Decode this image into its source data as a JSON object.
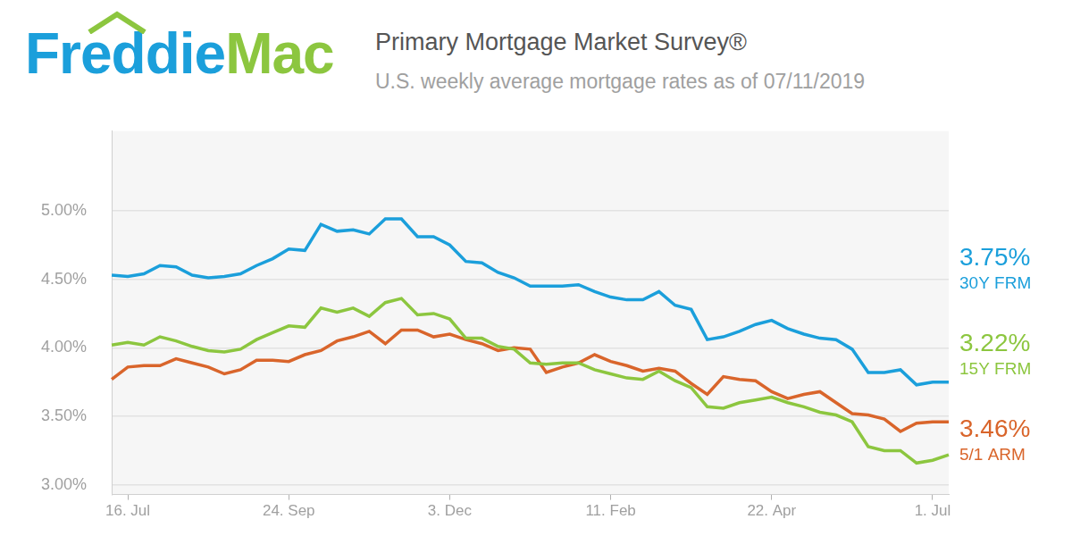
{
  "chart_data": {
    "type": "line",
    "logo": [
      "Freddie",
      "Mac"
    ],
    "title": "Primary Mortgage Market Survey®",
    "subtitle": "U.S. weekly average mortgage rates as of 07/11/2019",
    "categories": [
      null,
      "16. Jul",
      null,
      null,
      null,
      null,
      null,
      null,
      null,
      null,
      null,
      "24. Sep",
      null,
      null,
      null,
      null,
      null,
      null,
      null,
      null,
      null,
      "3. Dec",
      null,
      null,
      null,
      null,
      null,
      null,
      null,
      null,
      null,
      "11. Feb",
      null,
      null,
      null,
      null,
      null,
      null,
      null,
      null,
      null,
      "22. Apr",
      null,
      null,
      null,
      null,
      null,
      null,
      null,
      null,
      null,
      "1. Jul",
      null
    ],
    "series": [
      {
        "name": "30Y FRM",
        "color": "#1b9fdb",
        "values": [
          4.53,
          4.52,
          4.54,
          4.6,
          4.59,
          4.53,
          4.51,
          4.52,
          4.54,
          4.6,
          4.65,
          4.72,
          4.71,
          4.9,
          4.85,
          4.86,
          4.83,
          4.94,
          4.94,
          4.81,
          4.81,
          4.75,
          4.63,
          4.62,
          4.55,
          4.51,
          4.45,
          4.45,
          4.45,
          4.46,
          4.41,
          4.37,
          4.35,
          4.35,
          4.41,
          4.31,
          4.28,
          4.06,
          4.08,
          4.12,
          4.17,
          4.2,
          4.14,
          4.1,
          4.07,
          4.06,
          3.99,
          3.82,
          3.82,
          3.84,
          3.73,
          3.75,
          3.75
        ],
        "value_labels": [
          null,
          null,
          null,
          null,
          null,
          null,
          null,
          null,
          null,
          null,
          null,
          null,
          null,
          null,
          null,
          null,
          null,
          null,
          null,
          null,
          null,
          null,
          null,
          null,
          null,
          null,
          null,
          null,
          null,
          null,
          null,
          null,
          null,
          null,
          null,
          null,
          null,
          null,
          null,
          null,
          null,
          null,
          null,
          null,
          null,
          null,
          null,
          null,
          null,
          null,
          null,
          null,
          "3.75%"
        ]
      },
      {
        "name": "15Y FRM",
        "color": "#8cc63f",
        "values": [
          4.02,
          4.04,
          4.02,
          4.08,
          4.05,
          4.01,
          3.98,
          3.97,
          3.99,
          4.06,
          4.11,
          4.16,
          4.15,
          4.29,
          4.26,
          4.29,
          4.23,
          4.33,
          4.36,
          4.24,
          4.25,
          4.21,
          4.07,
          4.07,
          4.01,
          3.99,
          3.89,
          3.88,
          3.89,
          3.89,
          3.84,
          3.81,
          3.78,
          3.77,
          3.83,
          3.76,
          3.71,
          3.57,
          3.56,
          3.6,
          3.62,
          3.64,
          3.6,
          3.57,
          3.53,
          3.51,
          3.46,
          3.28,
          3.25,
          3.25,
          3.16,
          3.18,
          3.22
        ],
        "value_labels": [
          null,
          null,
          null,
          null,
          null,
          null,
          null,
          null,
          null,
          null,
          null,
          null,
          null,
          null,
          null,
          null,
          null,
          null,
          null,
          null,
          null,
          null,
          null,
          null,
          null,
          null,
          null,
          null,
          null,
          null,
          null,
          null,
          null,
          null,
          null,
          null,
          null,
          null,
          null,
          null,
          null,
          null,
          null,
          null,
          null,
          null,
          null,
          null,
          null,
          null,
          null,
          null,
          "3.22%"
        ]
      },
      {
        "name": "5/1 ARM",
        "color": "#d9652b",
        "values": [
          3.77,
          3.86,
          3.87,
          3.87,
          3.92,
          3.89,
          3.86,
          3.81,
          3.84,
          3.91,
          3.91,
          3.9,
          3.95,
          3.98,
          4.05,
          4.08,
          4.12,
          4.03,
          4.13,
          4.13,
          4.08,
          4.1,
          4.06,
          4.03,
          3.98,
          4.0,
          3.99,
          3.82,
          3.86,
          3.89,
          3.95,
          3.9,
          3.87,
          3.83,
          3.85,
          3.83,
          3.74,
          3.66,
          3.79,
          3.77,
          3.76,
          3.68,
          3.63,
          3.66,
          3.68,
          3.6,
          3.52,
          3.51,
          3.48,
          3.39,
          3.45,
          3.46,
          3.46
        ],
        "value_labels": [
          null,
          null,
          null,
          null,
          null,
          null,
          null,
          null,
          null,
          null,
          null,
          null,
          null,
          null,
          null,
          null,
          null,
          null,
          null,
          null,
          null,
          null,
          null,
          null,
          null,
          null,
          null,
          null,
          null,
          null,
          null,
          null,
          null,
          null,
          null,
          null,
          null,
          null,
          null,
          null,
          null,
          null,
          null,
          null,
          null,
          null,
          null,
          null,
          null,
          null,
          null,
          null,
          "3.46%"
        ]
      }
    ],
    "ylim": [
      2.93,
      5.58
    ],
    "yticks": [
      {
        "value": 3,
        "label": "3.00%"
      },
      {
        "value": 3.5,
        "label": "3.50%"
      },
      {
        "value": 4,
        "label": "4.00%"
      },
      {
        "value": 4.5,
        "label": "4.50%"
      },
      {
        "value": 5,
        "label": "5.00%"
      }
    ],
    "grid": true
  }
}
